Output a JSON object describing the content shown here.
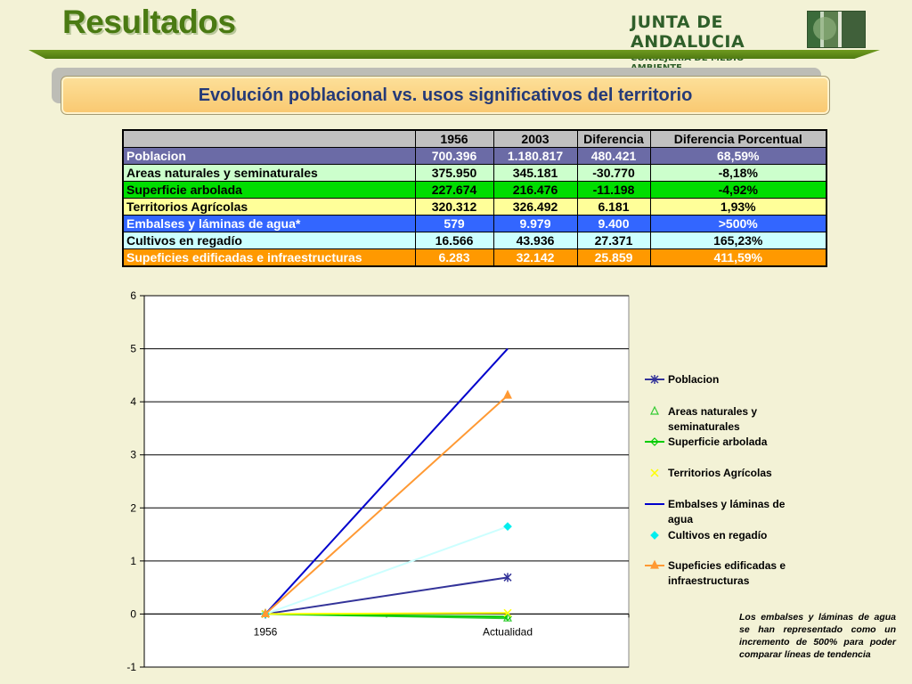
{
  "header": {
    "title": "Resultados",
    "org_name": "JUNTA DE ANDALUCIA",
    "org_department": "CONSEJERÍA DE MEDIO AMBIENTE"
  },
  "banner": {
    "text": "Evolución poblacional vs. usos significativos del territorio"
  },
  "table": {
    "columns": [
      "",
      "1956",
      "2003",
      "Diferencia",
      "Diferencia Porcentual"
    ],
    "rows": [
      {
        "label": "Poblacion",
        "v1956": "700.396",
        "v2003": "1.180.817",
        "diff": "480.421",
        "pct": "68,59%",
        "bg": "#6b6ba6",
        "fg": "#ffffff"
      },
      {
        "label": "Areas naturales y seminaturales",
        "v1956": "375.950",
        "v2003": "345.181",
        "diff": "-30.770",
        "pct": "-8,18%",
        "bg": "#ccffcc",
        "fg": "#000000"
      },
      {
        "label": "Superficie arbolada",
        "v1956": "227.674",
        "v2003": "216.476",
        "diff": "-11.198",
        "pct": "-4,92%",
        "bg": "#00dd00",
        "fg": "#000000"
      },
      {
        "label": "Territorios Agrícolas",
        "v1956": "320.312",
        "v2003": "326.492",
        "diff": "6.181",
        "pct": "1,93%",
        "bg": "#ffff99",
        "fg": "#000000"
      },
      {
        "label": "Embalses y láminas de agua*",
        "v1956": "579",
        "v2003": "9.979",
        "diff": "9.400",
        "pct": ">500%",
        "bg": "#3366ff",
        "fg": "#ffffff"
      },
      {
        "label": "Cultivos en regadío",
        "v1956": "16.566",
        "v2003": "43.936",
        "diff": "27.371",
        "pct": "165,23%",
        "bg": "#ccffff",
        "fg": "#000000"
      },
      {
        "label": "Supeficies edificadas e infraestructuras",
        "v1956": "6.283",
        "v2003": "32.142",
        "diff": "25.859",
        "pct": "411,59%",
        "bg": "#ff9900",
        "fg": "#ffffff"
      }
    ]
  },
  "chart_data": {
    "type": "line",
    "categories": [
      "1956",
      "Actualidad"
    ],
    "ylim": [
      -1,
      6
    ],
    "yticks": [
      -1,
      0,
      1,
      2,
      3,
      4,
      5,
      6
    ],
    "grid": "horizontal",
    "legend_position": "right",
    "series": [
      {
        "name": "Poblacion",
        "values": [
          0,
          0.69
        ],
        "color": "#333399",
        "marker": "star",
        "line": true
      },
      {
        "name": "Areas naturales y seminaturales",
        "values": [
          0,
          -0.08
        ],
        "color": "#33cc33",
        "marker": "triangle-open",
        "line": true
      },
      {
        "name": "Superficie arbolada",
        "values": [
          0,
          -0.05
        ],
        "color": "#00cc00",
        "marker": "diamond-open",
        "line": true
      },
      {
        "name": "Territorios Agrícolas",
        "values": [
          0,
          0.02
        ],
        "color": "#ffff00",
        "marker": "x",
        "line": true
      },
      {
        "name": "Embalses y láminas de agua",
        "values": [
          0,
          5.0
        ],
        "color": "#0000cc",
        "marker": "none",
        "line": true
      },
      {
        "name": "Cultivos en regadío",
        "values": [
          0,
          1.65
        ],
        "color": "#00eeee",
        "marker": "diamond",
        "line": true,
        "line_color": "#ccffff"
      },
      {
        "name": "Supeficies edificadas e infraestructuras",
        "values": [
          0,
          4.12
        ],
        "color": "#ff9933",
        "marker": "triangle",
        "line": true
      }
    ]
  },
  "note": {
    "text": "Los embalses y láminas de agua se han representado como un incremento de 500% para poder comparar líneas de tendencia"
  }
}
